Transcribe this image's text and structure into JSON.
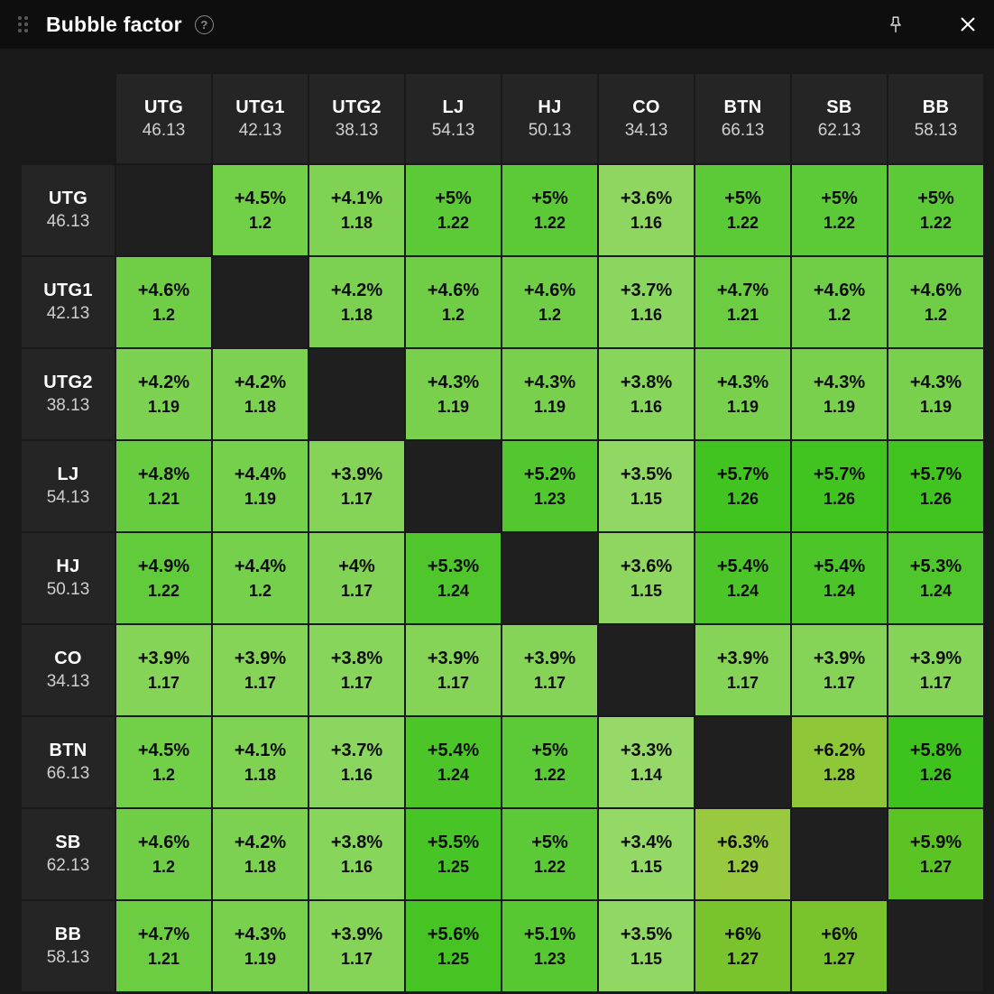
{
  "window": {
    "title": "Bubble factor",
    "help_glyph": "?"
  },
  "colors": {
    "page_bg": "#191919",
    "titlebar_bg": "#0e0e0e",
    "header_cell_bg": "#252525",
    "diagonal_cell_bg": "#1f1f1f",
    "cell_text": "#0c0c0c",
    "header_name_text": "#ffffff",
    "header_stack_text": "#cfcfcf",
    "icon_gray": "#8a8a8a"
  },
  "chart_data": {
    "type": "heatmap",
    "title": "Bubble factor",
    "columns": [
      {
        "pos": "UTG",
        "stack": "46.13"
      },
      {
        "pos": "UTG1",
        "stack": "42.13"
      },
      {
        "pos": "UTG2",
        "stack": "38.13"
      },
      {
        "pos": "LJ",
        "stack": "54.13"
      },
      {
        "pos": "HJ",
        "stack": "50.13"
      },
      {
        "pos": "CO",
        "stack": "34.13"
      },
      {
        "pos": "BTN",
        "stack": "66.13"
      },
      {
        "pos": "SB",
        "stack": "62.13"
      },
      {
        "pos": "BB",
        "stack": "58.13"
      }
    ],
    "rows": [
      {
        "pos": "UTG",
        "stack": "46.13",
        "cells": [
          null,
          {
            "pct": "+4.5%",
            "factor": "1.2"
          },
          {
            "pct": "+4.1%",
            "factor": "1.18"
          },
          {
            "pct": "+5%",
            "factor": "1.22"
          },
          {
            "pct": "+5%",
            "factor": "1.22"
          },
          {
            "pct": "+3.6%",
            "factor": "1.16"
          },
          {
            "pct": "+5%",
            "factor": "1.22"
          },
          {
            "pct": "+5%",
            "factor": "1.22"
          },
          {
            "pct": "+5%",
            "factor": "1.22"
          }
        ]
      },
      {
        "pos": "UTG1",
        "stack": "42.13",
        "cells": [
          {
            "pct": "+4.6%",
            "factor": "1.2"
          },
          null,
          {
            "pct": "+4.2%",
            "factor": "1.18"
          },
          {
            "pct": "+4.6%",
            "factor": "1.2"
          },
          {
            "pct": "+4.6%",
            "factor": "1.2"
          },
          {
            "pct": "+3.7%",
            "factor": "1.16"
          },
          {
            "pct": "+4.7%",
            "factor": "1.21"
          },
          {
            "pct": "+4.6%",
            "factor": "1.2"
          },
          {
            "pct": "+4.6%",
            "factor": "1.2"
          }
        ]
      },
      {
        "pos": "UTG2",
        "stack": "38.13",
        "cells": [
          {
            "pct": "+4.2%",
            "factor": "1.19"
          },
          {
            "pct": "+4.2%",
            "factor": "1.18"
          },
          null,
          {
            "pct": "+4.3%",
            "factor": "1.19"
          },
          {
            "pct": "+4.3%",
            "factor": "1.19"
          },
          {
            "pct": "+3.8%",
            "factor": "1.16"
          },
          {
            "pct": "+4.3%",
            "factor": "1.19"
          },
          {
            "pct": "+4.3%",
            "factor": "1.19"
          },
          {
            "pct": "+4.3%",
            "factor": "1.19"
          }
        ]
      },
      {
        "pos": "LJ",
        "stack": "54.13",
        "cells": [
          {
            "pct": "+4.8%",
            "factor": "1.21"
          },
          {
            "pct": "+4.4%",
            "factor": "1.19"
          },
          {
            "pct": "+3.9%",
            "factor": "1.17"
          },
          null,
          {
            "pct": "+5.2%",
            "factor": "1.23"
          },
          {
            "pct": "+3.5%",
            "factor": "1.15"
          },
          {
            "pct": "+5.7%",
            "factor": "1.26"
          },
          {
            "pct": "+5.7%",
            "factor": "1.26"
          },
          {
            "pct": "+5.7%",
            "factor": "1.26"
          }
        ]
      },
      {
        "pos": "HJ",
        "stack": "50.13",
        "cells": [
          {
            "pct": "+4.9%",
            "factor": "1.22"
          },
          {
            "pct": "+4.4%",
            "factor": "1.2"
          },
          {
            "pct": "+4%",
            "factor": "1.17"
          },
          {
            "pct": "+5.3%",
            "factor": "1.24"
          },
          null,
          {
            "pct": "+3.6%",
            "factor": "1.15"
          },
          {
            "pct": "+5.4%",
            "factor": "1.24"
          },
          {
            "pct": "+5.4%",
            "factor": "1.24"
          },
          {
            "pct": "+5.3%",
            "factor": "1.24"
          }
        ]
      },
      {
        "pos": "CO",
        "stack": "34.13",
        "cells": [
          {
            "pct": "+3.9%",
            "factor": "1.17"
          },
          {
            "pct": "+3.9%",
            "factor": "1.17"
          },
          {
            "pct": "+3.8%",
            "factor": "1.17"
          },
          {
            "pct": "+3.9%",
            "factor": "1.17"
          },
          {
            "pct": "+3.9%",
            "factor": "1.17"
          },
          null,
          {
            "pct": "+3.9%",
            "factor": "1.17"
          },
          {
            "pct": "+3.9%",
            "factor": "1.17"
          },
          {
            "pct": "+3.9%",
            "factor": "1.17"
          }
        ]
      },
      {
        "pos": "BTN",
        "stack": "66.13",
        "cells": [
          {
            "pct": "+4.5%",
            "factor": "1.2"
          },
          {
            "pct": "+4.1%",
            "factor": "1.18"
          },
          {
            "pct": "+3.7%",
            "factor": "1.16"
          },
          {
            "pct": "+5.4%",
            "factor": "1.24"
          },
          {
            "pct": "+5%",
            "factor": "1.22"
          },
          {
            "pct": "+3.3%",
            "factor": "1.14"
          },
          null,
          {
            "pct": "+6.2%",
            "factor": "1.28"
          },
          {
            "pct": "+5.8%",
            "factor": "1.26"
          }
        ]
      },
      {
        "pos": "SB",
        "stack": "62.13",
        "cells": [
          {
            "pct": "+4.6%",
            "factor": "1.2"
          },
          {
            "pct": "+4.2%",
            "factor": "1.18"
          },
          {
            "pct": "+3.8%",
            "factor": "1.16"
          },
          {
            "pct": "+5.5%",
            "factor": "1.25"
          },
          {
            "pct": "+5%",
            "factor": "1.22"
          },
          {
            "pct": "+3.4%",
            "factor": "1.15"
          },
          {
            "pct": "+6.3%",
            "factor": "1.29"
          },
          null,
          {
            "pct": "+5.9%",
            "factor": "1.27"
          }
        ]
      },
      {
        "pos": "BB",
        "stack": "58.13",
        "cells": [
          {
            "pct": "+4.7%",
            "factor": "1.21"
          },
          {
            "pct": "+4.3%",
            "factor": "1.19"
          },
          {
            "pct": "+3.9%",
            "factor": "1.17"
          },
          {
            "pct": "+5.6%",
            "factor": "1.25"
          },
          {
            "pct": "+5.1%",
            "factor": "1.23"
          },
          {
            "pct": "+3.5%",
            "factor": "1.15"
          },
          {
            "pct": "+6%",
            "factor": "1.27"
          },
          {
            "pct": "+6%",
            "factor": "1.27"
          },
          null
        ]
      }
    ],
    "color_stops": [
      {
        "value": 3.3,
        "color": "#97d969"
      },
      {
        "value": 4.0,
        "color": "#82d355"
      },
      {
        "value": 4.7,
        "color": "#6ccd43"
      },
      {
        "value": 5.2,
        "color": "#52c72e"
      },
      {
        "value": 5.8,
        "color": "#3ec21d"
      },
      {
        "value": 6.0,
        "color": "#79c42d"
      },
      {
        "value": 6.3,
        "color": "#99c93e"
      }
    ]
  }
}
